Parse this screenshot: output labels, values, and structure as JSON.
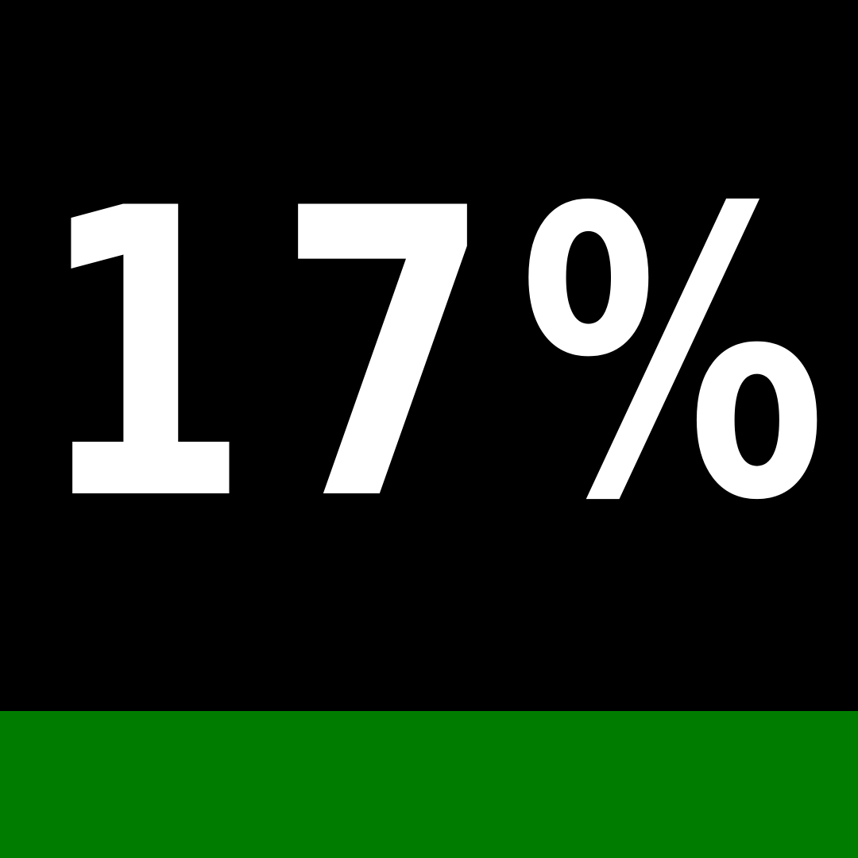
{
  "stat": {
    "text": "17%"
  },
  "colors": {
    "background": "#000000",
    "text": "#ffffff",
    "bottom_bar": "#007d00"
  }
}
